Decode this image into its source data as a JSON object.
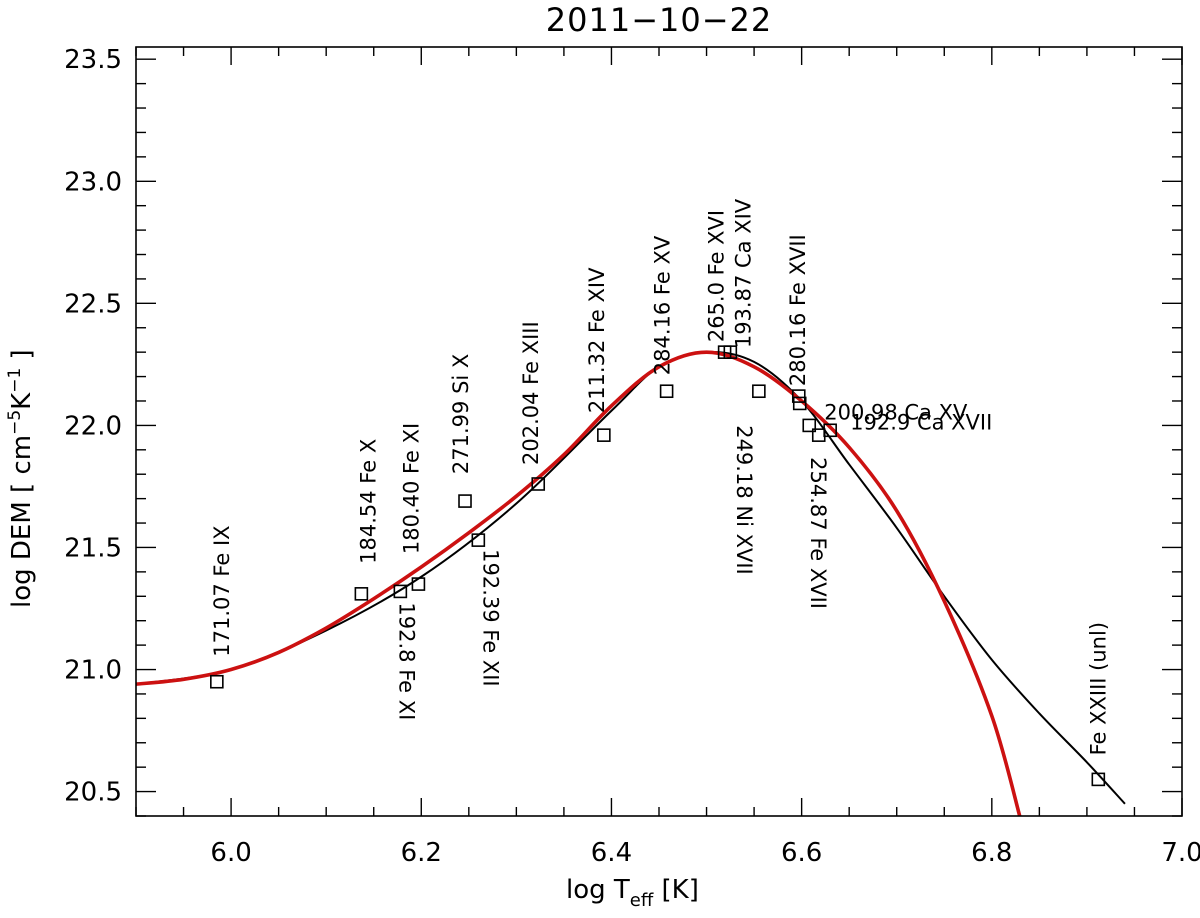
{
  "chart_data": {
    "type": "scatter",
    "title": "2011−10−22",
    "xlabel": {
      "prefix": "log T",
      "sub": "eff",
      "suffix": " [K]"
    },
    "ylabel": {
      "prefix": "log DEM [ cm",
      "sup1": "−5",
      "mid": "K",
      "sup2": "−1",
      "suffix": " ]"
    },
    "xlim": [
      5.9,
      7.0
    ],
    "ylim": [
      20.4,
      23.55
    ],
    "x_ticks": [
      6.0,
      6.2,
      6.4,
      6.6,
      6.8,
      7.0
    ],
    "x_tick_labels": [
      "6.0",
      "6.2",
      "6.4",
      "6.6",
      "6.8",
      "7.0"
    ],
    "y_ticks": [
      20.5,
      21.0,
      21.5,
      22.0,
      22.5,
      23.0,
      23.5
    ],
    "y_tick_labels": [
      "20.5",
      "21.0",
      "21.5",
      "22.0",
      "22.5",
      "23.0",
      "23.5"
    ],
    "grid": false,
    "series": [
      {
        "name": "DEM curve (black)",
        "color": "#000000",
        "x": [
          5.9,
          6.0,
          6.1,
          6.2,
          6.3,
          6.4,
          6.45,
          6.5,
          6.55,
          6.6,
          6.65,
          6.7,
          6.75,
          6.8,
          6.85,
          6.9,
          6.94
        ],
        "y": [
          20.94,
          21.0,
          21.16,
          21.38,
          21.68,
          22.06,
          22.24,
          22.3,
          22.26,
          22.1,
          21.84,
          21.58,
          21.3,
          21.04,
          20.82,
          20.62,
          20.45
        ]
      },
      {
        "name": "DEM curve (red)",
        "color": "#cc1111",
        "x": [
          5.9,
          5.95,
          6.0,
          6.05,
          6.1,
          6.15,
          6.2,
          6.25,
          6.3,
          6.35,
          6.4,
          6.45,
          6.5,
          6.55,
          6.6,
          6.65,
          6.7,
          6.75,
          6.8,
          6.83
        ],
        "y": [
          20.94,
          20.96,
          21.0,
          21.07,
          21.17,
          21.29,
          21.42,
          21.56,
          21.71,
          21.88,
          22.08,
          22.24,
          22.3,
          22.24,
          22.1,
          21.91,
          21.65,
          21.28,
          20.81,
          20.39
        ]
      },
      {
        "name": "Line points",
        "marker": "square",
        "points": [
          {
            "x": 5.985,
            "y": 20.95,
            "label": "171.07   Fe IX"
          },
          {
            "x": 6.137,
            "y": 21.31,
            "label": "184.54  Fe X"
          },
          {
            "x": 6.178,
            "y": 21.32,
            "label": "192.8 Fe XI"
          },
          {
            "x": 6.197,
            "y": 21.35,
            "label": "180.40 Fe XI"
          },
          {
            "x": 6.246,
            "y": 21.69,
            "label": "271.99   Si X"
          },
          {
            "x": 6.26,
            "y": 21.53,
            "label": "192.39 Fe XII"
          },
          {
            "x": 6.323,
            "y": 21.76,
            "label": "202.04  Fe XIII"
          },
          {
            "x": 6.392,
            "y": 21.96,
            "label": "211.32 Fe XIV"
          },
          {
            "x": 6.458,
            "y": 22.14,
            "label": "284.16   Fe XV"
          },
          {
            "x": 6.519,
            "y": 22.3,
            "label": "265.0 Fe XVI"
          },
          {
            "x": 6.525,
            "y": 22.3,
            "label": "193.87  Ca XIV"
          },
          {
            "x": 6.555,
            "y": 22.14,
            "label": "249.18 Ni XVII"
          },
          {
            "x": 6.597,
            "y": 22.12,
            "label": "280.16 Fe XVII"
          },
          {
            "x": 6.598,
            "y": 22.09,
            "label": ""
          },
          {
            "x": 6.608,
            "y": 22.0,
            "label": "200.98   Ca XV"
          },
          {
            "x": 6.618,
            "y": 21.96,
            "label": "254.87 Fe XVII"
          },
          {
            "x": 6.63,
            "y": 21.98,
            "label": "192.9  Ca XVII"
          },
          {
            "x": 6.912,
            "y": 20.55,
            "label": "Fe XXIII (unl)"
          }
        ]
      }
    ]
  }
}
